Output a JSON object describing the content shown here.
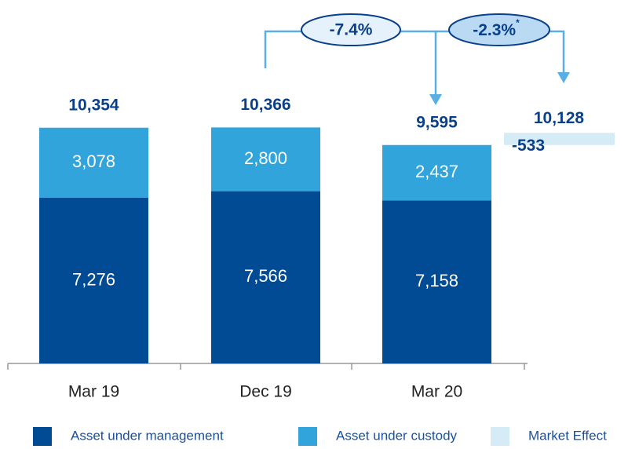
{
  "chart_data": {
    "type": "bar",
    "stacked": true,
    "categories": [
      "Mar 19",
      "Dec 19",
      "Mar 20"
    ],
    "series": [
      {
        "name": "Asset under management",
        "color": "#004b93",
        "values": [
          7276,
          7566,
          7158
        ],
        "value_labels": [
          "7,276",
          "7,566",
          "7,158"
        ]
      },
      {
        "name": "Asset under custody",
        "color": "#31a5db",
        "values": [
          3078,
          2800,
          2437
        ],
        "value_labels": [
          "3,078",
          "2,800",
          "2,437"
        ]
      }
    ],
    "totals": {
      "values": [
        10354,
        10366,
        9595
      ],
      "value_labels": [
        "10,354",
        "10,366",
        "9,595"
      ]
    },
    "market_effect": {
      "name": "Market Effect",
      "color": "#d5ebf5",
      "value": -533,
      "total": 10128,
      "total_label": "10,128"
    },
    "annotations": [
      {
        "text": "-7.4%"
      },
      {
        "text": "-2.3%",
        "note": "*"
      }
    ]
  }
}
